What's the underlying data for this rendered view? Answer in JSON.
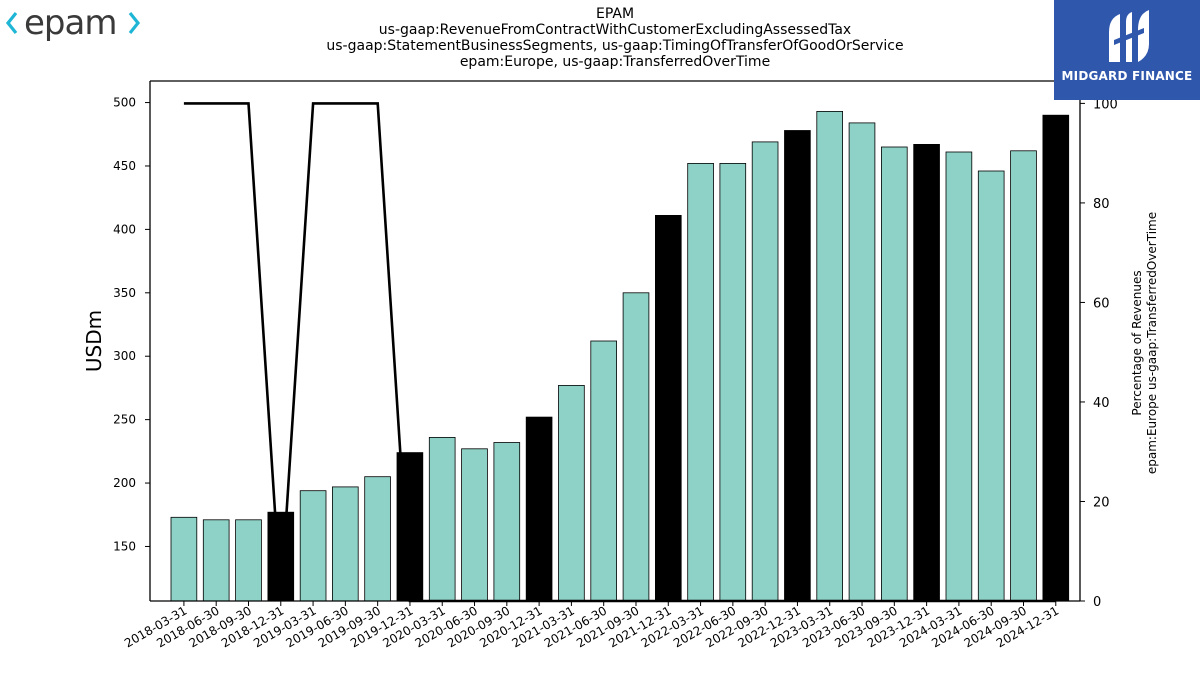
{
  "header": {
    "title_lines": [
      "EPAM",
      "us-gaap:RevenueFromContractWithCustomerExcludingAssessedTax",
      "us-gaap:StatementBusinessSegments, us-gaap:TimingOfTransferOfGoodOrService",
      "epam:Europe, us-gaap:TransferredOverTime"
    ]
  },
  "logos": {
    "left": "epam",
    "right": "MIDGARD FINANCE"
  },
  "colors": {
    "bar_default": "#8ed1c6",
    "bar_highlight": "#000000",
    "line": "#000000",
    "logo_cyan": "#1fb6d6",
    "logo_gray": "#3a3a3a",
    "midgard_blue": "#2f58ad"
  },
  "chart_data": {
    "type": "bar",
    "categories": [
      "2018-03-31",
      "2018-06-30",
      "2018-09-30",
      "2018-12-31",
      "2019-03-31",
      "2019-06-30",
      "2019-09-30",
      "2019-12-31",
      "2020-03-31",
      "2020-06-30",
      "2020-09-30",
      "2020-12-31",
      "2021-03-31",
      "2021-06-30",
      "2021-09-30",
      "2021-12-31",
      "2022-03-31",
      "2022-06-30",
      "2022-09-30",
      "2022-12-31",
      "2023-03-31",
      "2023-06-30",
      "2023-09-30",
      "2023-12-31",
      "2024-03-31",
      "2024-06-30",
      "2024-09-30",
      "2024-12-31"
    ],
    "series": [
      {
        "axis": "left",
        "type": "bar",
        "values": [
          173,
          171,
          171,
          177,
          194,
          197,
          205,
          224,
          236,
          227,
          232,
          252,
          277,
          312,
          350,
          411,
          452,
          452,
          469,
          478,
          493,
          484,
          465,
          467,
          461,
          446,
          462,
          490
        ],
        "highlight": [
          false,
          false,
          false,
          true,
          false,
          false,
          false,
          true,
          false,
          false,
          false,
          true,
          false,
          false,
          false,
          true,
          false,
          false,
          false,
          true,
          false,
          false,
          false,
          true,
          false,
          false,
          false,
          true
        ]
      },
      {
        "axis": "right",
        "type": "line",
        "values": [
          100,
          100,
          100,
          0,
          100,
          100,
          100,
          0,
          0,
          0,
          0,
          0,
          0,
          0,
          0,
          0,
          0,
          0,
          0,
          0,
          0,
          0,
          0,
          0,
          0,
          0,
          0,
          0
        ]
      }
    ],
    "ylabel": "USDm",
    "ylabel_right_lines": [
      "Percentage of Revenues",
      "epam:Europe us-gaap:TransferredOverTime"
    ],
    "ylim": [
      107,
      517
    ],
    "yticks": [
      150,
      200,
      250,
      300,
      350,
      400,
      450,
      500
    ],
    "ylim_right": [
      0,
      104.5
    ],
    "yticks_right": [
      0,
      20,
      40,
      60,
      80,
      100
    ],
    "grid": false
  }
}
